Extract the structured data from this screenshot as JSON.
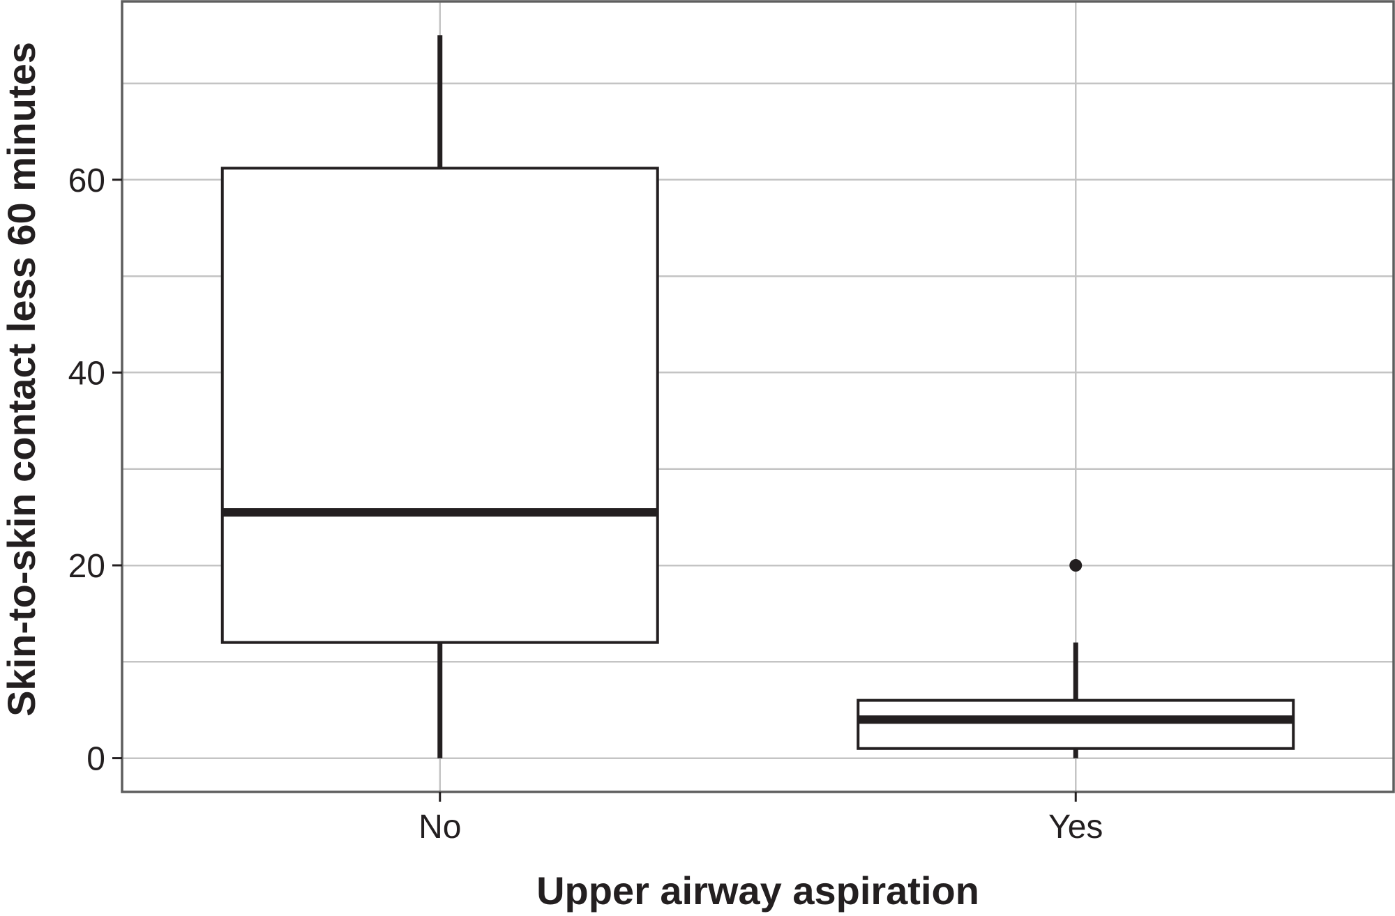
{
  "chart_data": {
    "type": "box",
    "title": "",
    "xlabel": "Upper airway aspiration",
    "ylabel": "Skin-to-skin contact less 60 minutes",
    "categories": [
      "No",
      "Yes"
    ],
    "ylim": [
      -3.5,
      78.5
    ],
    "yticks": [
      0,
      20,
      40,
      60
    ],
    "ygrid_minor": [
      10,
      30,
      50,
      70
    ],
    "grid": true,
    "legend": "none",
    "boxes": [
      {
        "category": "No",
        "whisker_low": 0,
        "q1": 12,
        "median": 25.5,
        "q3": 61.2,
        "whisker_high": 75,
        "outliers": []
      },
      {
        "category": "Yes",
        "whisker_low": 0,
        "q1": 1,
        "median": 4,
        "q3": 6,
        "whisker_high": 12,
        "outliers": [
          20
        ]
      }
    ],
    "colors": {
      "box_fill": "#ffffff",
      "box_stroke": "#231f20",
      "grid": "#c4c4c4",
      "panel_border": "#5e5e5e",
      "text": "#231f20"
    }
  }
}
